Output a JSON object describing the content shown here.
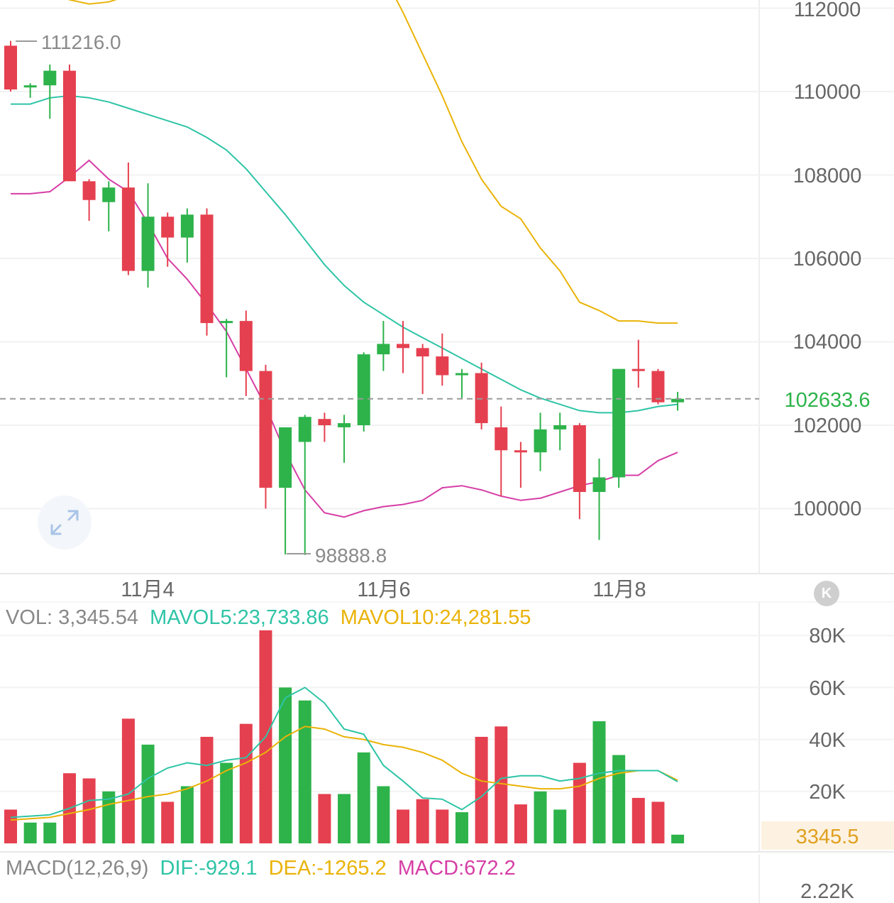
{
  "colors": {
    "up": "#2db34a",
    "down": "#e5404f",
    "ma_teal": "#2ec4a6",
    "ma_orange": "#eab308",
    "ma_pink": "#d63ea6",
    "last_box": "#fdf2e1"
  },
  "price_panel": {
    "y_labels": [
      "112000",
      "110000",
      "108000",
      "106000",
      "104000",
      "102000",
      "100000"
    ],
    "x_labels": [
      "11月4",
      "11月6",
      "11月8"
    ],
    "last_price": "102633.6",
    "high_marker": "111216.0",
    "low_marker": "98888.8"
  },
  "volume_panel": {
    "label": "VOL: 3,345.54",
    "mavol5": "MAVOL5:23,733.86",
    "mavol10": "MAVOL10:24,281.55",
    "y_labels": [
      "80K",
      "60K",
      "40K",
      "20K"
    ],
    "last_value": "3345.5"
  },
  "macd_panel": {
    "label": "MACD(12,26,9)",
    "dif": "DIF:-929.1",
    "dea": "DEA:-1265.2",
    "macd": "MACD:672.2",
    "y_label": "2.22K"
  },
  "k_button": "K",
  "expand_icon": "expand-arrows-icon",
  "chart_data": {
    "type": "candlestick",
    "x_labels": [
      "11月4",
      "11月6",
      "11月8"
    ],
    "ylim": [
      98500,
      112200
    ],
    "candles": [
      {
        "o": 111100,
        "h": 111216,
        "l": 110000,
        "c": 110050
      },
      {
        "o": 110100,
        "h": 110200,
        "l": 109850,
        "c": 110150
      },
      {
        "o": 110150,
        "h": 110650,
        "l": 109350,
        "c": 110500
      },
      {
        "o": 110500,
        "h": 110650,
        "l": 107900,
        "c": 107850
      },
      {
        "o": 107850,
        "h": 107900,
        "l": 106900,
        "c": 107400
      },
      {
        "o": 107350,
        "h": 107850,
        "l": 106650,
        "c": 107700
      },
      {
        "o": 107700,
        "h": 108300,
        "l": 105600,
        "c": 105700
      },
      {
        "o": 105700,
        "h": 107800,
        "l": 105300,
        "c": 107000
      },
      {
        "o": 107000,
        "h": 107100,
        "l": 105800,
        "c": 106500
      },
      {
        "o": 106500,
        "h": 107200,
        "l": 105900,
        "c": 107050
      },
      {
        "o": 107050,
        "h": 107200,
        "l": 104150,
        "c": 104450
      },
      {
        "o": 104450,
        "h": 104550,
        "l": 103150,
        "c": 104500
      },
      {
        "o": 104500,
        "h": 104750,
        "l": 102700,
        "c": 103300
      },
      {
        "o": 103300,
        "h": 103450,
        "l": 100000,
        "c": 100500
      },
      {
        "o": 100500,
        "h": 101850,
        "l": 98900,
        "c": 101950
      },
      {
        "o": 101600,
        "h": 102250,
        "l": 98888.8,
        "c": 102200
      },
      {
        "o": 102150,
        "h": 102300,
        "l": 101600,
        "c": 102000
      },
      {
        "o": 101950,
        "h": 102250,
        "l": 101100,
        "c": 102050
      },
      {
        "o": 102000,
        "h": 103750,
        "l": 101850,
        "c": 103700
      },
      {
        "o": 103700,
        "h": 104500,
        "l": 103300,
        "c": 103950
      },
      {
        "o": 103950,
        "h": 104500,
        "l": 103250,
        "c": 103850
      },
      {
        "o": 103850,
        "h": 103950,
        "l": 102750,
        "c": 103650
      },
      {
        "o": 103650,
        "h": 104200,
        "l": 102950,
        "c": 103200
      },
      {
        "o": 103250,
        "h": 103350,
        "l": 102650,
        "c": 103250
      },
      {
        "o": 103250,
        "h": 103500,
        "l": 101900,
        "c": 102050
      },
      {
        "o": 101950,
        "h": 102450,
        "l": 100300,
        "c": 101400
      },
      {
        "o": 101400,
        "h": 101600,
        "l": 100500,
        "c": 101350
      },
      {
        "o": 101350,
        "h": 102300,
        "l": 100900,
        "c": 101900
      },
      {
        "o": 101900,
        "h": 102300,
        "l": 101400,
        "c": 102000
      },
      {
        "o": 102000,
        "h": 102050,
        "l": 99750,
        "c": 100400
      },
      {
        "o": 100400,
        "h": 101200,
        "l": 99250,
        "c": 100750
      },
      {
        "o": 100750,
        "h": 103350,
        "l": 100500,
        "c": 103350
      },
      {
        "o": 103350,
        "h": 104050,
        "l": 102900,
        "c": 103300
      },
      {
        "o": 103300,
        "h": 103350,
        "l": 102500,
        "c": 102550
      },
      {
        "o": 102550,
        "h": 102800,
        "l": 102350,
        "c": 102633.6
      }
    ],
    "ma_teal": [
      109700,
      109700,
      109850,
      109900,
      109850,
      109750,
      109600,
      109450,
      109300,
      109150,
      108900,
      108600,
      108150,
      107600,
      107050,
      106450,
      105850,
      105350,
      104950,
      104650,
      104350,
      104100,
      103850,
      103600,
      103350,
      103100,
      102850,
      102650,
      102500,
      102350,
      102300,
      102300,
      102350,
      102450,
      102500
    ],
    "ma_orange": [
      113000,
      112800,
      112500,
      112200,
      112100,
      112150,
      112300,
      112600,
      113000,
      113500,
      114000,
      114300,
      114500,
      114600,
      114600,
      114500,
      114300,
      114000,
      113500,
      112800,
      111900,
      110900,
      109900,
      108800,
      107900,
      107250,
      106950,
      106250,
      105700,
      104950,
      104750,
      104500,
      104500,
      104450,
      104450
    ],
    "ma_pink": [
      107550,
      107550,
      107600,
      107950,
      108350,
      107900,
      107600,
      106850,
      106000,
      105500,
      104900,
      104250,
      103350,
      102450,
      101350,
      100450,
      99900,
      99800,
      99950,
      100050,
      100100,
      100200,
      100500,
      100550,
      100450,
      100300,
      100200,
      100250,
      100400,
      100550,
      100650,
      100800,
      100800,
      101150,
      101350
    ],
    "volume": {
      "values": [
        13000,
        8000,
        8000,
        27000,
        25000,
        20000,
        48000,
        38000,
        16000,
        22000,
        41000,
        31000,
        46000,
        82000,
        60000,
        55000,
        19000,
        19000,
        35000,
        22000,
        13000,
        17000,
        13000,
        12000,
        41000,
        45000,
        15000,
        20000,
        13000,
        31000,
        47000,
        34000,
        17500,
        16000,
        3345.54
      ],
      "ylim": [
        0,
        82000
      ],
      "mavol5": [
        10000,
        10500,
        11000,
        13500,
        16500,
        17000,
        19000,
        25000,
        29000,
        31000,
        30000,
        32000,
        33000,
        41000,
        56000,
        60000,
        54000,
        44000,
        42000,
        30000,
        24000,
        17500,
        17000,
        13000,
        18000,
        25000,
        26000,
        26000,
        24000,
        25000,
        27000,
        28000,
        28000,
        28000,
        23733.86
      ],
      "mavol10": [
        9000,
        9500,
        10000,
        11500,
        13000,
        15000,
        16500,
        18000,
        19000,
        21000,
        24000,
        28000,
        31000,
        35000,
        41000,
        45000,
        44000,
        41000,
        40000,
        38000,
        37000,
        35000,
        32000,
        27000,
        24000,
        23000,
        22000,
        21000,
        21000,
        22000,
        25000,
        27000,
        28000,
        28000,
        24281.55
      ]
    },
    "macd": {
      "params": "12,26,9",
      "dif": -929.1,
      "dea": -1265.2,
      "macd": 672.2
    }
  }
}
